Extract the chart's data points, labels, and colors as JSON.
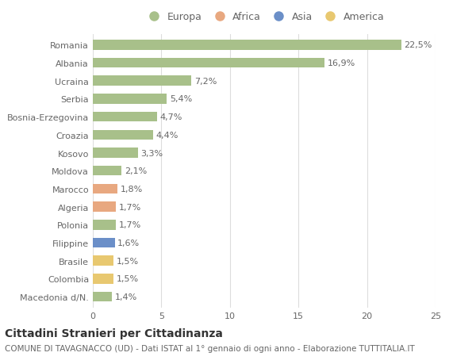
{
  "countries": [
    "Romania",
    "Albania",
    "Ucraina",
    "Serbia",
    "Bosnia-Erzegovina",
    "Croazia",
    "Kosovo",
    "Moldova",
    "Marocco",
    "Algeria",
    "Polonia",
    "Filippine",
    "Brasile",
    "Colombia",
    "Macedonia d/N."
  ],
  "values": [
    22.5,
    16.9,
    7.2,
    5.4,
    4.7,
    4.4,
    3.3,
    2.1,
    1.8,
    1.7,
    1.7,
    1.6,
    1.5,
    1.5,
    1.4
  ],
  "labels": [
    "22,5%",
    "16,9%",
    "7,2%",
    "5,4%",
    "4,7%",
    "4,4%",
    "3,3%",
    "2,1%",
    "1,8%",
    "1,7%",
    "1,7%",
    "1,6%",
    "1,5%",
    "1,5%",
    "1,4%"
  ],
  "continents": [
    "Europa",
    "Europa",
    "Europa",
    "Europa",
    "Europa",
    "Europa",
    "Europa",
    "Europa",
    "Africa",
    "Africa",
    "Europa",
    "Asia",
    "America",
    "America",
    "Europa"
  ],
  "colors": {
    "Europa": "#a8c08a",
    "Africa": "#e8a880",
    "Asia": "#6b8fc8",
    "America": "#e8c870"
  },
  "legend_order": [
    "Europa",
    "Africa",
    "Asia",
    "America"
  ],
  "xlim": [
    0,
    25
  ],
  "xticks": [
    0,
    5,
    10,
    15,
    20,
    25
  ],
  "title": "Cittadini Stranieri per Cittadinanza",
  "subtitle": "COMUNE DI TAVAGNACCO (UD) - Dati ISTAT al 1° gennaio di ogni anno - Elaborazione TUTTITALIA.IT",
  "bg_color": "#ffffff",
  "grid_color": "#dddddd",
  "bar_height": 0.55,
  "label_fontsize": 8,
  "tick_fontsize": 8,
  "title_fontsize": 10,
  "subtitle_fontsize": 7.5,
  "legend_fontsize": 9
}
